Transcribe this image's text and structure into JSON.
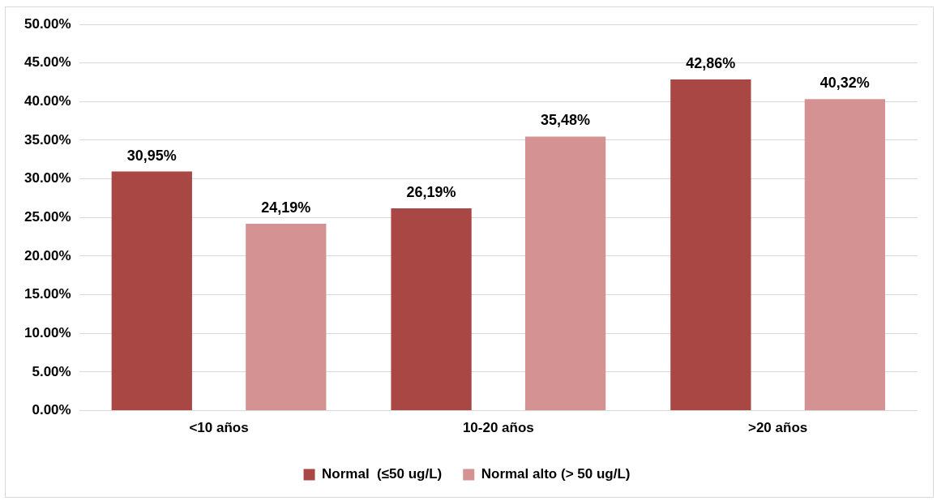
{
  "chart_data": {
    "type": "bar",
    "categories": [
      "<10 años",
      "10-20 años",
      ">20 años"
    ],
    "series": [
      {
        "name": "Normal  (≤50 ug/L)",
        "color": "#a84744",
        "values": [
          30.95,
          26.19,
          42.86
        ],
        "value_labels": [
          "30,95%",
          "26,19%",
          "42,86%"
        ]
      },
      {
        "name": "Normal alto (> 50 ug/L)",
        "color": "#d49392",
        "values": [
          24.19,
          35.48,
          40.32
        ],
        "value_labels": [
          "24,19%",
          "35,48%",
          "40,32%"
        ]
      }
    ],
    "ylim": [
      0,
      50
    ],
    "yticks": [
      {
        "value": 0,
        "label": "0.00%"
      },
      {
        "value": 5,
        "label": "5.00%"
      },
      {
        "value": 10,
        "label": "10.00%"
      },
      {
        "value": 15,
        "label": "15.00%"
      },
      {
        "value": 20,
        "label": "20.00%"
      },
      {
        "value": 25,
        "label": "25.00%"
      },
      {
        "value": 30,
        "label": "30.00%"
      },
      {
        "value": 35,
        "label": "35.00%"
      },
      {
        "value": 40,
        "label": "40.00%"
      },
      {
        "value": 45,
        "label": "45.00%"
      },
      {
        "value": 50,
        "label": "50.00%"
      }
    ],
    "grid": "y",
    "legend": "bottom"
  }
}
